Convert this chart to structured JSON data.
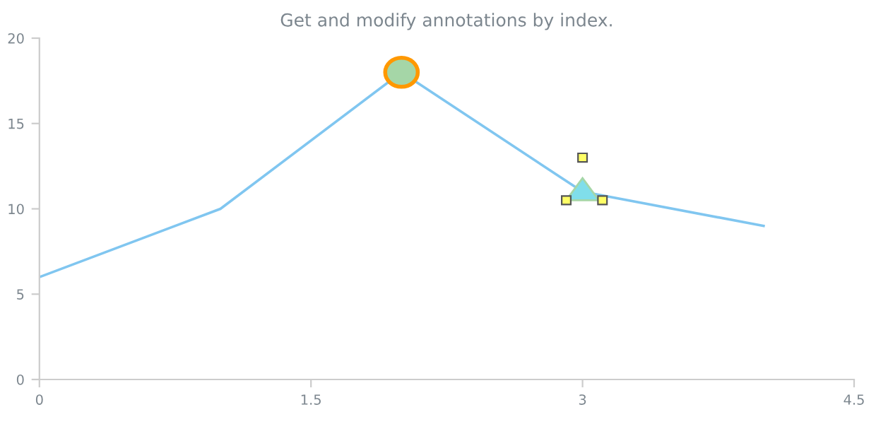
{
  "chart_data": {
    "type": "line",
    "title": "Get and modify annotations by index.",
    "x": [
      0,
      1,
      2,
      3,
      4
    ],
    "series": [
      {
        "color": "#80c6f0",
        "values": [
          6,
          10,
          18,
          11,
          9
        ]
      }
    ],
    "xlim": [
      0,
      4.5
    ],
    "xticks": [
      0,
      1.5,
      3,
      4.5
    ],
    "ylim": [
      0,
      20
    ],
    "yticks": [
      0,
      5,
      10,
      15,
      20
    ],
    "grid": false,
    "legend": false,
    "marker": "none",
    "line_style": "solid"
  }
}
